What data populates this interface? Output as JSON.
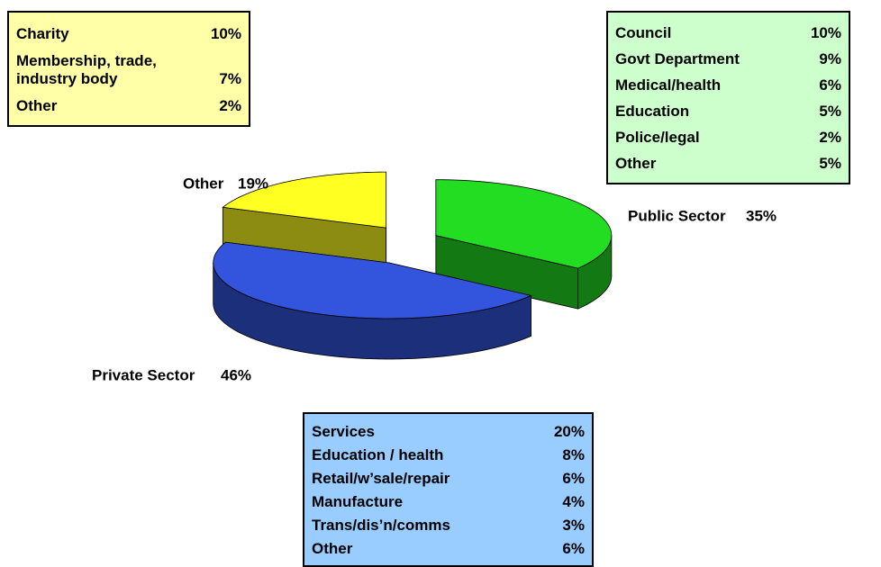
{
  "chart_data": {
    "type": "pie",
    "categories": [
      "Public Sector",
      "Private Sector",
      "Other"
    ],
    "values": [
      35,
      46,
      19
    ],
    "value_labels": [
      "35%",
      "46%",
      "19%"
    ],
    "colors": [
      "#22dd22",
      "#3355dd",
      "#ffff22"
    ],
    "breakdowns": [
      {
        "color": "#ffffa8",
        "rows": [
          {
            "label": "Charity",
            "value_label": "10%"
          },
          {
            "label": "Membership, trade,\nindustry body",
            "value_label": "7%"
          },
          {
            "label": "Other",
            "value_label": "2%"
          }
        ]
      },
      {
        "color": "#ccffcc",
        "rows": [
          {
            "label": "Council",
            "value_label": "10%"
          },
          {
            "label": "Govt Department",
            "value_label": "9%"
          },
          {
            "label": "Medical/health",
            "value_label": "6%"
          },
          {
            "label": "Education",
            "value_label": "5%"
          },
          {
            "label": "Police/legal",
            "value_label": "2%"
          },
          {
            "label": "Other",
            "value_label": "5%"
          }
        ]
      },
      {
        "color": "#99ccff",
        "rows": [
          {
            "label": "Services",
            "value_label": "20%"
          },
          {
            "label": "Education / health",
            "value_label": "8%"
          },
          {
            "label": "Retail/w’sale/repair",
            "value_label": "6%"
          },
          {
            "label": "Manufacture",
            "value_label": "4%"
          },
          {
            "label": "Trans/dis’n/comms",
            "value_label": "3%"
          },
          {
            "label": "Other",
            "value_label": "6%"
          }
        ]
      }
    ]
  }
}
